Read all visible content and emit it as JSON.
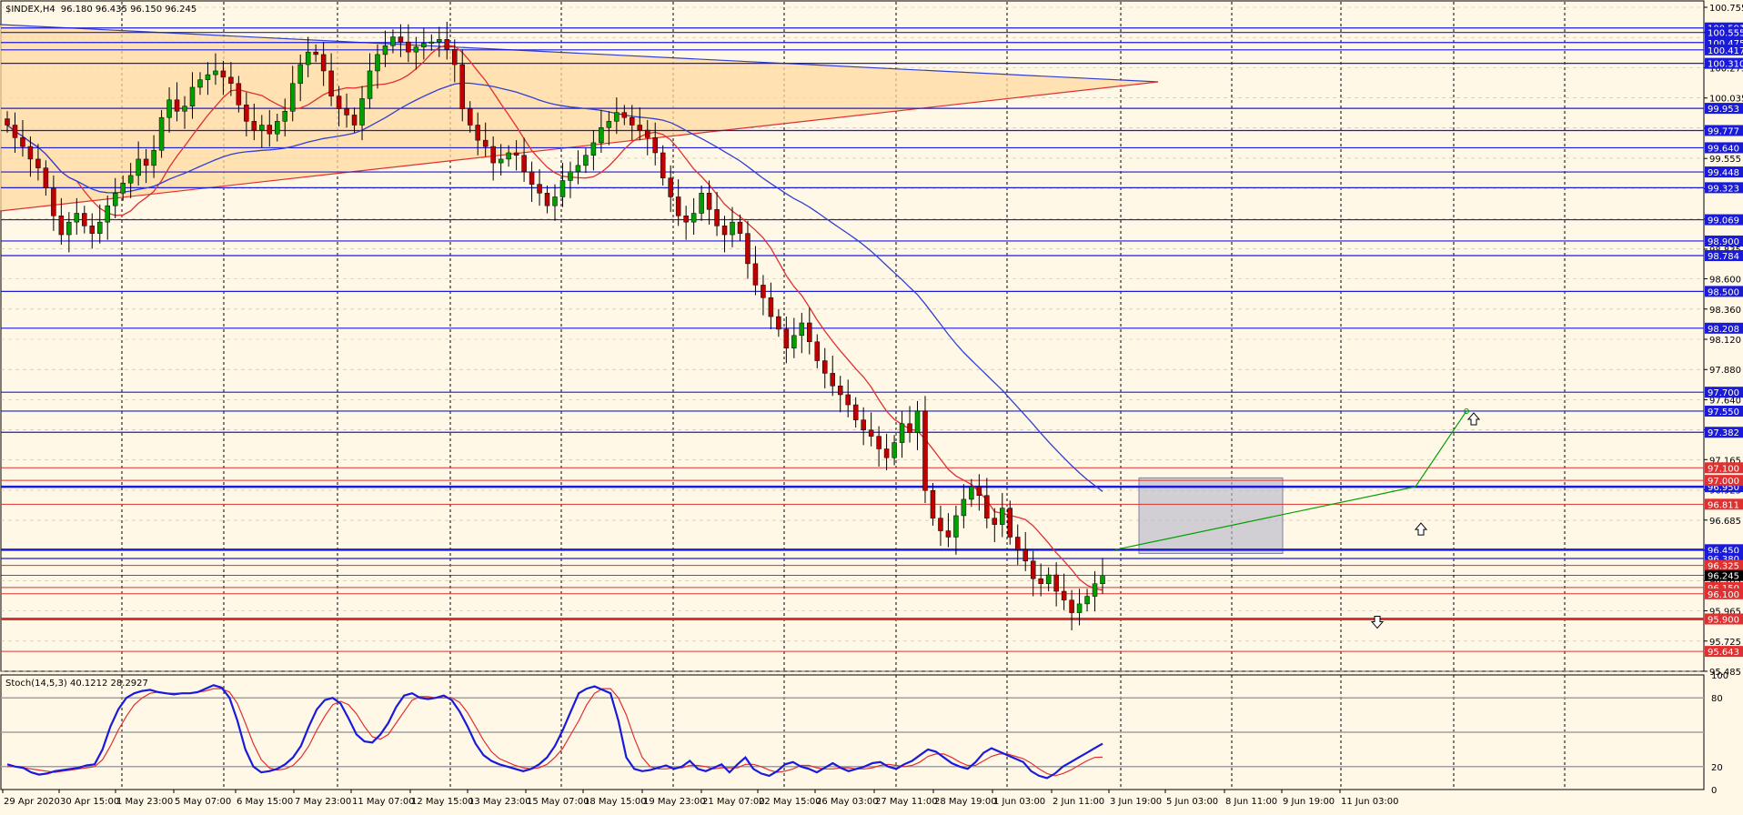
{
  "window": {
    "title": "$INDEX,H4",
    "ohlc": "96.180 96.435 96.150 96.245"
  },
  "indicator": {
    "title": "Stoch(14,5,3) 40.1212 28.2927",
    "ticks": [
      "100",
      "80",
      "20",
      "0"
    ],
    "levels": [
      80,
      50,
      20
    ]
  },
  "colors": {
    "background": "#fff8e7",
    "bull": "#00a000",
    "bear": "#c00000",
    "support_line": "#1a1adb",
    "resistance_line": "#e03030",
    "ma_fast": "#e03030",
    "ma_slow": "#3040d0",
    "triangle_fill": "#ffd9a0"
  },
  "chart_data": {
    "type": "candlestick",
    "symbol": "$INDEX",
    "timeframe": "H4",
    "ylim": [
      95.485,
      100.755
    ],
    "y_ticks": [
      "100.755",
      "100.555",
      "100.275",
      "100.035",
      "99.795",
      "99.555",
      "99.315",
      "99.075",
      "98.835",
      "98.600",
      "98.360",
      "98.120",
      "97.880",
      "97.640",
      "97.400",
      "97.165",
      "96.925",
      "96.685",
      "96.445",
      "96.205",
      "95.965",
      "95.725",
      "95.485"
    ],
    "x_labels": [
      "29 Apr 2020",
      "30 Apr 15:00",
      "1 May 23:00",
      "5 May 07:00",
      "6 May 15:00",
      "7 May 23:00",
      "11 May 07:00",
      "12 May 15:00",
      "13 May 23:00",
      "15 May 07:00",
      "18 May 15:00",
      "19 May 23:00",
      "21 May 07:00",
      "22 May 15:00",
      "26 May 03:00",
      "27 May 11:00",
      "28 May 19:00",
      "1 Jun 03:00",
      "2 Jun 11:00",
      "3 Jun 19:00",
      "5 Jun 03:00",
      "8 Jun 11:00",
      "9 Jun 19:00",
      "11 Jun 03:00"
    ],
    "close_series": [
      99.82,
      99.72,
      99.65,
      99.55,
      99.48,
      99.32,
      99.1,
      98.95,
      99.05,
      99.12,
      99.02,
      98.96,
      99.05,
      99.18,
      99.28,
      99.36,
      99.42,
      99.55,
      99.5,
      99.62,
      99.88,
      100.02,
      99.93,
      99.97,
      100.12,
      100.18,
      100.22,
      100.25,
      100.2,
      100.15,
      99.98,
      99.85,
      99.78,
      99.82,
      99.75,
      99.85,
      99.93,
      100.15,
      100.3,
      100.4,
      100.38,
      100.25,
      100.05,
      99.95,
      99.9,
      99.82,
      100.03,
      100.25,
      100.38,
      100.45,
      100.52,
      100.48,
      100.4,
      100.44,
      100.47,
      100.48,
      100.5,
      100.42,
      100.3,
      99.95,
      99.82,
      99.7,
      99.65,
      99.52,
      99.55,
      99.6,
      99.58,
      99.45,
      99.35,
      99.28,
      99.18,
      99.25,
      99.38,
      99.45,
      99.5,
      99.58,
      99.68,
      99.8,
      99.85,
      99.92,
      99.88,
      99.82,
      99.78,
      99.72,
      99.6,
      99.4,
      99.25,
      99.1,
      99.05,
      99.12,
      99.28,
      99.15,
      99.02,
      98.95,
      99.05,
      98.96,
      98.72,
      98.55,
      98.45,
      98.3,
      98.2,
      98.05,
      98.15,
      98.25,
      98.1,
      97.95,
      97.85,
      97.75,
      97.68,
      97.6,
      97.48,
      97.4,
      97.35,
      97.25,
      97.18,
      97.3,
      97.45,
      97.38,
      97.55,
      96.92,
      96.7,
      96.6,
      96.55,
      96.72,
      96.85,
      96.95,
      96.88,
      96.7,
      96.65,
      96.78,
      96.55,
      96.45,
      96.36,
      96.22,
      96.18,
      96.25,
      96.12,
      96.05,
      95.95,
      96.02,
      96.08,
      96.18,
      96.245
    ],
    "series": [
      {
        "name": "MA fast",
        "type": "line"
      },
      {
        "name": "MA slow",
        "type": "line"
      },
      {
        "name": "Stoch main",
        "type": "line"
      },
      {
        "name": "Stoch signal",
        "type": "line"
      }
    ],
    "stoch_main": [
      22,
      20,
      19,
      15,
      13,
      14,
      16,
      17,
      18,
      19,
      21,
      22,
      35,
      55,
      70,
      80,
      84,
      86,
      87,
      85,
      84,
      83,
      84,
      84,
      85,
      88,
      91,
      89,
      80,
      60,
      35,
      20,
      15,
      16,
      18,
      22,
      28,
      38,
      55,
      70,
      78,
      80,
      75,
      62,
      48,
      42,
      41,
      48,
      58,
      72,
      82,
      84,
      80,
      79,
      80,
      82,
      78,
      68,
      55,
      40,
      30,
      25,
      22,
      20,
      18,
      16,
      18,
      22,
      28,
      38,
      52,
      68,
      84,
      88,
      90,
      87,
      84,
      60,
      28,
      18,
      16,
      17,
      19,
      21,
      18,
      20,
      25,
      18,
      16,
      19,
      22,
      15,
      22,
      28,
      18,
      14,
      12,
      16,
      22,
      24,
      20,
      18,
      15,
      19,
      23,
      19,
      16,
      18,
      20,
      23,
      24,
      20,
      18,
      22,
      25,
      30,
      35,
      33,
      28,
      23,
      20,
      18,
      24,
      32,
      36,
      33,
      30,
      27,
      24,
      16,
      12,
      10,
      14,
      20,
      24,
      28,
      32,
      36,
      40
    ],
    "stoch_signal": [
      20,
      20,
      19,
      18,
      17,
      16,
      15,
      16,
      17,
      18,
      19,
      20,
      26,
      38,
      52,
      64,
      74,
      80,
      84,
      85,
      84,
      84,
      84,
      84,
      85,
      86,
      88,
      88,
      85,
      75,
      58,
      40,
      26,
      19,
      17,
      18,
      21,
      28,
      38,
      52,
      64,
      74,
      77,
      74,
      66,
      55,
      46,
      44,
      48,
      58,
      68,
      78,
      81,
      81,
      80,
      80,
      80,
      76,
      67,
      55,
      43,
      33,
      27,
      24,
      21,
      19,
      18,
      19,
      22,
      28,
      36,
      48,
      60,
      74,
      84,
      88,
      88,
      80,
      65,
      45,
      28,
      20,
      18,
      18,
      19,
      19,
      21,
      21,
      20,
      18,
      19,
      19,
      19,
      22,
      22,
      20,
      17,
      15,
      16,
      18,
      21,
      21,
      19,
      18,
      18,
      19,
      19,
      18,
      18,
      19,
      21,
      22,
      21,
      20,
      21,
      24,
      29,
      31,
      31,
      28,
      24,
      21,
      21,
      25,
      29,
      31,
      31,
      29,
      27,
      23,
      18,
      14,
      12,
      14,
      17,
      21,
      25,
      28,
      28.29
    ],
    "annotations": {
      "buy_arrow_up": [
        "97.550",
        "96.950"
      ],
      "sell_arrow_down": [
        "95.900"
      ]
    }
  },
  "price_levels": {
    "blue": [
      "100.591",
      "100.555",
      "100.475",
      "100.417",
      "100.310",
      "99.953",
      "99.777",
      "99.640",
      "99.448",
      "99.323",
      "99.069",
      "98.900",
      "98.784",
      "98.500",
      "98.208",
      "97.700",
      "97.550",
      "97.382",
      "96.950",
      "96.450",
      "96.380"
    ],
    "red": [
      "97.100",
      "97.000",
      "96.811",
      "96.325",
      "96.150",
      "96.100",
      "95.900",
      "95.643"
    ],
    "current": "96.245"
  }
}
